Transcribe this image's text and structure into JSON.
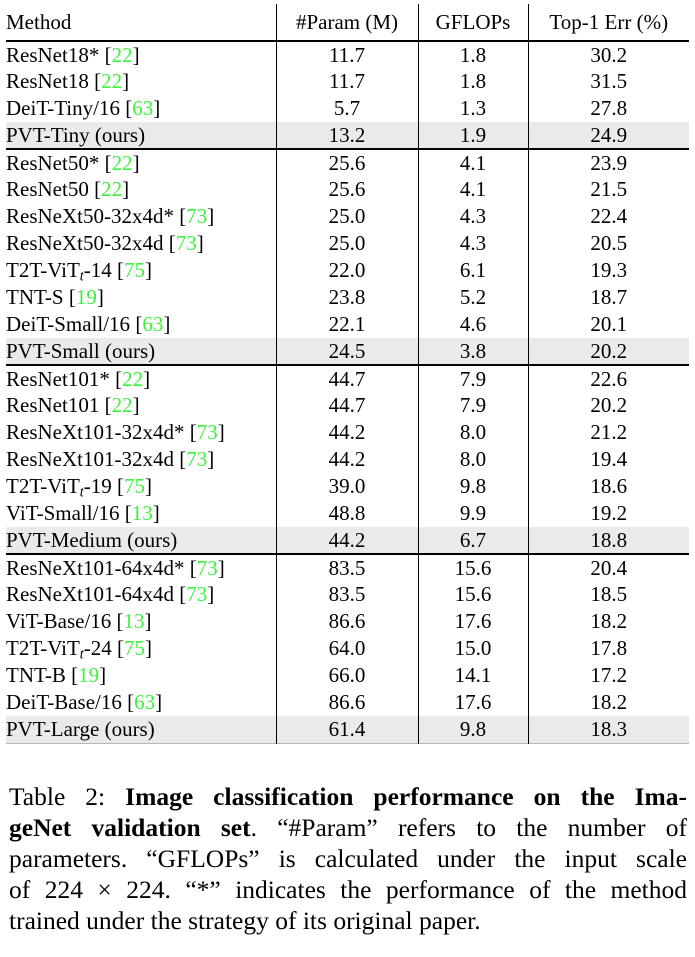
{
  "colors": {
    "cite": "#3ef23e",
    "highlight": "#eaeaea",
    "text": "#000000",
    "rule": "#000000"
  },
  "table": {
    "headers": [
      "Method",
      "#Param (M)",
      "GFLOPs",
      "Top-1 Err (%)"
    ],
    "groups": [
      {
        "rows": [
          {
            "parts": [
              {
                "t": "ResNet18*"
              }
            ],
            "cite": "22",
            "param": "11.7",
            "gflops": "1.8",
            "err": "30.2",
            "ours": false
          },
          {
            "parts": [
              {
                "t": "ResNet18"
              }
            ],
            "cite": "22",
            "param": "11.7",
            "gflops": "1.8",
            "err": "31.5",
            "ours": false
          },
          {
            "parts": [
              {
                "t": "DeiT-Tiny/16"
              }
            ],
            "cite": "63",
            "param": "5.7",
            "gflops": "1.3",
            "err": "27.8",
            "ours": false
          },
          {
            "parts": [
              {
                "t": "PVT-Tiny (ours)"
              }
            ],
            "cite": null,
            "param": "13.2",
            "gflops": "1.9",
            "err": "24.9",
            "ours": true
          }
        ]
      },
      {
        "rows": [
          {
            "parts": [
              {
                "t": "ResNet50*"
              }
            ],
            "cite": "22",
            "param": "25.6",
            "gflops": "4.1",
            "err": "23.9",
            "ours": false
          },
          {
            "parts": [
              {
                "t": "ResNet50"
              }
            ],
            "cite": "22",
            "param": "25.6",
            "gflops": "4.1",
            "err": "21.5",
            "ours": false
          },
          {
            "parts": [
              {
                "t": "ResNeXt50-32x4d*"
              }
            ],
            "cite": "73",
            "param": "25.0",
            "gflops": "4.3",
            "err": "22.4",
            "ours": false
          },
          {
            "parts": [
              {
                "t": "ResNeXt50-32x4d"
              }
            ],
            "cite": "73",
            "param": "25.0",
            "gflops": "4.3",
            "err": "20.5",
            "ours": false
          },
          {
            "parts": [
              {
                "t": "T2T-ViT"
              },
              {
                "t": "t",
                "sub": true
              },
              {
                "t": "-14"
              }
            ],
            "cite": "75",
            "param": "22.0",
            "gflops": "6.1",
            "err": "19.3",
            "ours": false
          },
          {
            "parts": [
              {
                "t": "TNT-S"
              }
            ],
            "cite": "19",
            "param": "23.8",
            "gflops": "5.2",
            "err": "18.7",
            "ours": false
          },
          {
            "parts": [
              {
                "t": "DeiT-Small/16"
              }
            ],
            "cite": "63",
            "param": "22.1",
            "gflops": "4.6",
            "err": "20.1",
            "ours": false
          },
          {
            "parts": [
              {
                "t": "PVT-Small (ours)"
              }
            ],
            "cite": null,
            "param": "24.5",
            "gflops": "3.8",
            "err": "20.2",
            "ours": true
          }
        ]
      },
      {
        "rows": [
          {
            "parts": [
              {
                "t": "ResNet101*"
              }
            ],
            "cite": "22",
            "param": "44.7",
            "gflops": "7.9",
            "err": "22.6",
            "ours": false
          },
          {
            "parts": [
              {
                "t": "ResNet101"
              }
            ],
            "cite": "22",
            "param": "44.7",
            "gflops": "7.9",
            "err": "20.2",
            "ours": false
          },
          {
            "parts": [
              {
                "t": "ResNeXt101-32x4d*"
              }
            ],
            "cite": "73",
            "param": "44.2",
            "gflops": "8.0",
            "err": "21.2",
            "ours": false
          },
          {
            "parts": [
              {
                "t": "ResNeXt101-32x4d"
              }
            ],
            "cite": "73",
            "param": "44.2",
            "gflops": "8.0",
            "err": "19.4",
            "ours": false
          },
          {
            "parts": [
              {
                "t": "T2T-ViT"
              },
              {
                "t": "t",
                "sub": true
              },
              {
                "t": "-19"
              }
            ],
            "cite": "75",
            "param": "39.0",
            "gflops": "9.8",
            "err": "18.6",
            "ours": false
          },
          {
            "parts": [
              {
                "t": "ViT-Small/16"
              }
            ],
            "cite": "13",
            "param": "48.8",
            "gflops": "9.9",
            "err": "19.2",
            "ours": false
          },
          {
            "parts": [
              {
                "t": "PVT-Medium (ours)"
              }
            ],
            "cite": null,
            "param": "44.2",
            "gflops": "6.7",
            "err": "18.8",
            "ours": true
          }
        ]
      },
      {
        "rows": [
          {
            "parts": [
              {
                "t": "ResNeXt101-64x4d*"
              }
            ],
            "cite": "73",
            "param": "83.5",
            "gflops": "15.6",
            "err": "20.4",
            "ours": false
          },
          {
            "parts": [
              {
                "t": "ResNeXt101-64x4d"
              }
            ],
            "cite": "73",
            "param": "83.5",
            "gflops": "15.6",
            "err": "18.5",
            "ours": false
          },
          {
            "parts": [
              {
                "t": "ViT-Base/16"
              }
            ],
            "cite": "13",
            "param": "86.6",
            "gflops": "17.6",
            "err": "18.2",
            "ours": false
          },
          {
            "parts": [
              {
                "t": "T2T-ViT"
              },
              {
                "t": "t",
                "sub": true
              },
              {
                "t": "-24"
              }
            ],
            "cite": "75",
            "param": "64.0",
            "gflops": "15.0",
            "err": "17.8",
            "ours": false
          },
          {
            "parts": [
              {
                "t": "TNT-B"
              }
            ],
            "cite": "19",
            "param": "66.0",
            "gflops": "14.1",
            "err": "17.2",
            "ours": false
          },
          {
            "parts": [
              {
                "t": "DeiT-Base/16"
              }
            ],
            "cite": "63",
            "param": "86.6",
            "gflops": "17.6",
            "err": "18.2",
            "ours": false
          },
          {
            "parts": [
              {
                "t": "PVT-Large (ours)"
              }
            ],
            "cite": null,
            "param": "61.4",
            "gflops": "9.8",
            "err": "18.3",
            "ours": true
          }
        ]
      }
    ]
  },
  "caption": {
    "lines": [
      {
        "last": false,
        "segments": [
          {
            "text": "Table 2: ",
            "bold": false
          },
          {
            "text": "Image classification performance on the Ima-",
            "bold": true
          }
        ]
      },
      {
        "last": false,
        "segments": [
          {
            "text": "geNet validation set",
            "bold": true
          },
          {
            "text": ". “#Param” refers to the number of",
            "bold": false
          }
        ]
      },
      {
        "last": false,
        "segments": [
          {
            "text": "parameters. “GFLOPs” is calculated under the input scale",
            "bold": false
          }
        ]
      },
      {
        "last": false,
        "segments": [
          {
            "text": "of 224 × 224. “*” indicates the performance of the method",
            "bold": false
          }
        ]
      },
      {
        "last": true,
        "segments": [
          {
            "text": "trained under the strategy of its original paper.",
            "bold": false
          }
        ]
      }
    ]
  }
}
